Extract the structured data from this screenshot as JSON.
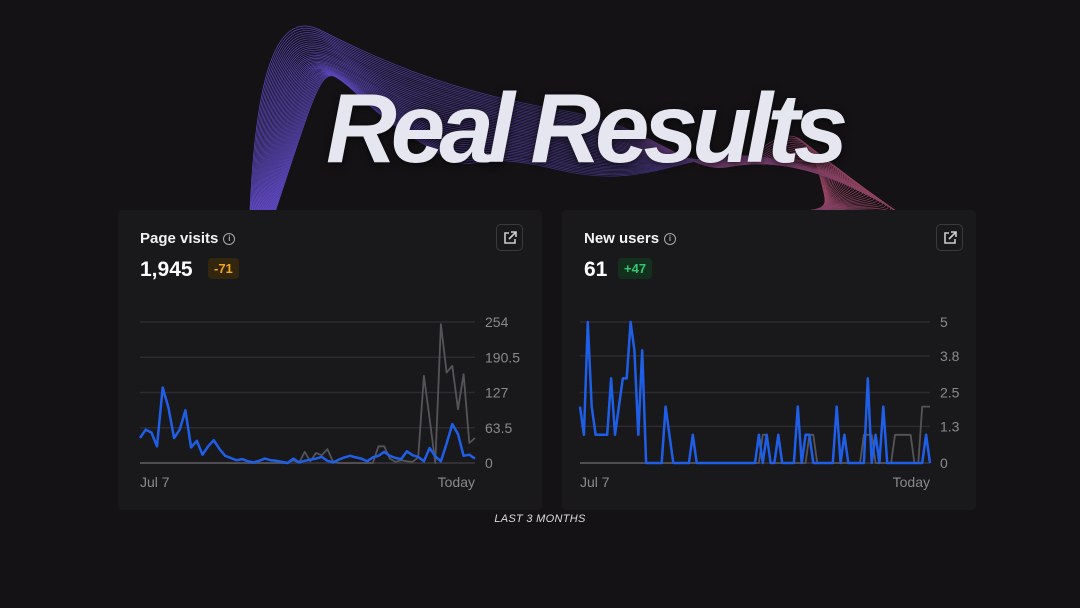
{
  "headline": "Real Results",
  "footer": "LAST 3 MONTHS",
  "colors": {
    "background": "#141214",
    "current": "#1f5fe8",
    "previous": "#555458",
    "negative_badge": "#f2a51f",
    "positive_badge": "#34c56f",
    "wave_start": "#7a5cff",
    "wave_end": "#c0557a"
  },
  "cards": [
    {
      "title": "Page visits",
      "info_icon": "info-icon",
      "value": "1,945",
      "delta": "-71",
      "action_icon": "external-link-icon"
    },
    {
      "title": "New users",
      "info_icon": "info-icon",
      "value": "61",
      "delta": "+47",
      "action_icon": "external-link-icon"
    }
  ],
  "chart_data": [
    {
      "type": "line",
      "ylim": [
        0,
        254
      ],
      "yticks": [
        "254",
        "190.5",
        "127",
        "63.5",
        "0"
      ],
      "ytick_values": [
        254,
        190.5,
        127,
        63.5,
        0
      ],
      "xticks": [
        "Jul 7",
        "Today"
      ],
      "grid": true,
      "series": [
        {
          "role": "current",
          "values": [
            45,
            60,
            55,
            30,
            136,
            100,
            45,
            60,
            95,
            28,
            40,
            15,
            30,
            41,
            25,
            13,
            9,
            5,
            7,
            3,
            1,
            4,
            8,
            5,
            4,
            2,
            0,
            8,
            1,
            4,
            6,
            8,
            11,
            4,
            1,
            6,
            10,
            13,
            10,
            8,
            3,
            10,
            13,
            20,
            13,
            9,
            7,
            21,
            14,
            11,
            3,
            27,
            12,
            3,
            35,
            70,
            52,
            13,
            15,
            8
          ]
        },
        {
          "role": "previous",
          "values": [
            0,
            0,
            0,
            0,
            0,
            0,
            0,
            0,
            0,
            0,
            0,
            0,
            0,
            0,
            0,
            0,
            0,
            0,
            0,
            0,
            0,
            0,
            0,
            0,
            0,
            0,
            0,
            5,
            0,
            20,
            3,
            18,
            14,
            25,
            2,
            0,
            0,
            0,
            0,
            0,
            0,
            0,
            30,
            30,
            8,
            2,
            5,
            3,
            2,
            10,
            157,
            80,
            0,
            250,
            163,
            175,
            97,
            160,
            36,
            45
          ]
        }
      ]
    },
    {
      "type": "line",
      "ylim": [
        0,
        5
      ],
      "yticks": [
        "5",
        "3.8",
        "2.5",
        "1.3",
        "0"
      ],
      "ytick_values": [
        5,
        3.8,
        2.5,
        1.3,
        0
      ],
      "xticks": [
        "Jul 7",
        "Today"
      ],
      "grid": true,
      "series": [
        {
          "role": "current",
          "values": [
            2,
            1,
            5,
            2,
            1,
            1,
            1,
            1,
            3,
            1,
            2,
            3,
            3,
            5,
            4,
            1,
            4,
            0,
            0,
            0,
            0,
            0,
            2,
            1,
            0,
            0,
            0,
            0,
            0,
            1,
            0,
            0,
            0,
            0,
            0,
            0,
            0,
            0,
            0,
            0,
            0,
            0,
            0,
            0,
            0,
            0,
            1,
            0,
            1,
            0,
            0,
            1,
            0,
            0,
            0,
            0,
            2,
            0,
            1,
            1,
            0,
            0,
            0,
            0,
            0,
            0,
            2,
            0,
            1,
            0,
            0,
            0,
            0,
            0,
            3,
            0,
            1,
            0,
            2,
            0,
            0,
            0,
            0,
            0,
            0,
            0,
            0,
            0,
            0,
            1,
            0
          ]
        },
        {
          "role": "previous",
          "values": [
            0,
            0,
            0,
            0,
            0,
            0,
            0,
            0,
            0,
            0,
            0,
            0,
            0,
            0,
            0,
            0,
            0,
            0,
            0,
            0,
            0,
            0,
            0,
            0,
            0,
            0,
            0,
            0,
            0,
            0,
            0,
            0,
            0,
            0,
            0,
            0,
            0,
            0,
            0,
            0,
            0,
            0,
            0,
            0,
            0,
            0,
            0,
            1,
            1,
            0,
            0,
            0,
            0,
            0,
            0,
            0,
            0,
            0,
            0,
            1,
            1,
            0,
            0,
            0,
            0,
            0,
            0,
            0,
            0,
            0,
            0,
            0,
            0,
            1,
            1,
            1,
            0,
            0,
            0,
            0,
            0,
            1,
            1,
            1,
            1,
            1,
            0,
            0,
            2,
            2,
            2
          ]
        }
      ]
    }
  ]
}
